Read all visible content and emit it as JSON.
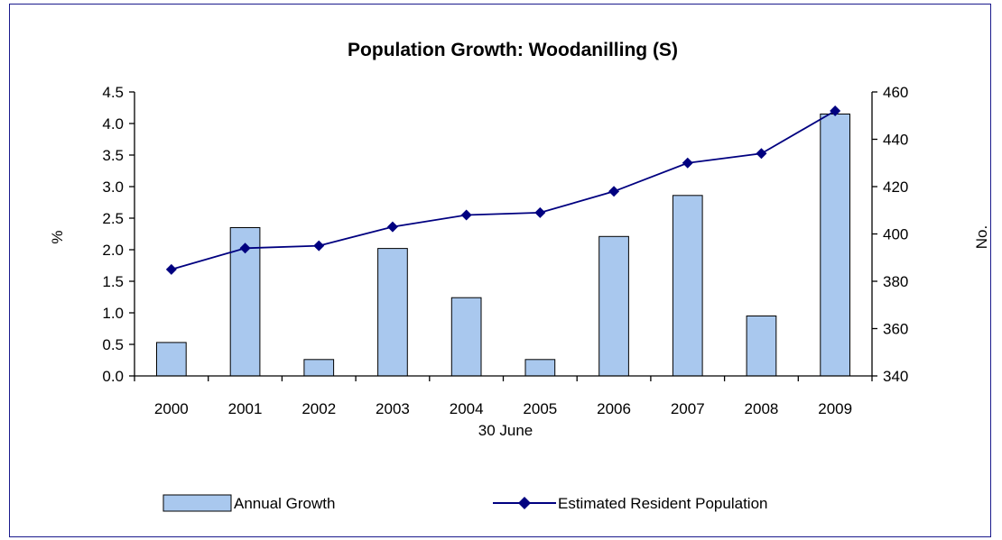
{
  "chart_data": {
    "type": "bar",
    "title": "Population Growth:  Woodanilling (S)",
    "xlabel": "30 June",
    "ylabel_left": "%",
    "ylabel_right": "No.",
    "categories": [
      "2000",
      "2001",
      "2002",
      "2003",
      "2004",
      "2005",
      "2006",
      "2007",
      "2008",
      "2009"
    ],
    "ylim_left": [
      0,
      4.5
    ],
    "yticks_left": [
      "0.0",
      "0.5",
      "1.0",
      "1.5",
      "2.0",
      "2.5",
      "3.0",
      "3.5",
      "4.0",
      "4.5"
    ],
    "ylim_right": [
      340,
      460
    ],
    "yticks_right": [
      "340",
      "360",
      "380",
      "400",
      "420",
      "440",
      "460"
    ],
    "series": [
      {
        "name": "Annual Growth",
        "type": "bar",
        "axis": "left",
        "color": "#a9c8ee",
        "values": [
          0.53,
          2.35,
          0.26,
          2.02,
          1.24,
          0.26,
          2.21,
          2.86,
          0.95,
          4.15
        ]
      },
      {
        "name": "Estimated Resident Population",
        "type": "line",
        "axis": "right",
        "color": "#000080",
        "marker": "diamond",
        "values": [
          385,
          394,
          395,
          403,
          408,
          409,
          418,
          430,
          434,
          452
        ]
      }
    ],
    "grid": false,
    "legend_position": "bottom"
  }
}
